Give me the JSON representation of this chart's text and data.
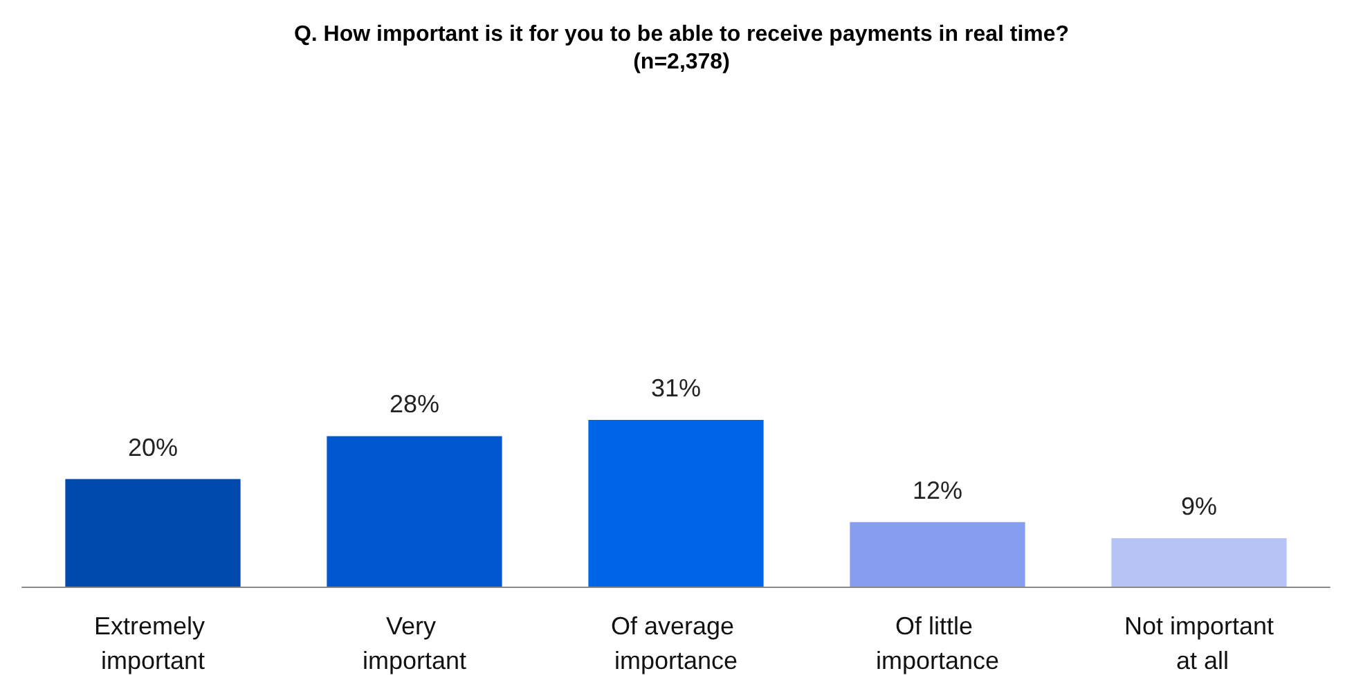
{
  "chart_data": {
    "type": "bar",
    "title": "Q. How important is it for you to be able to receive payments in real time?",
    "subtitle": "(n=2,378)",
    "categories": [
      "Extremely important",
      "Very important",
      "Of average importance",
      "Of little importance",
      "Not important at all"
    ],
    "values": [
      20,
      28,
      31,
      12,
      9
    ],
    "colors": [
      "#004aad",
      "#0058d0",
      "#0066e8",
      "#879ef0",
      "#b6c3f5"
    ],
    "value_labels": [
      "20%",
      "28%",
      "31%",
      "12%",
      "9%"
    ]
  }
}
